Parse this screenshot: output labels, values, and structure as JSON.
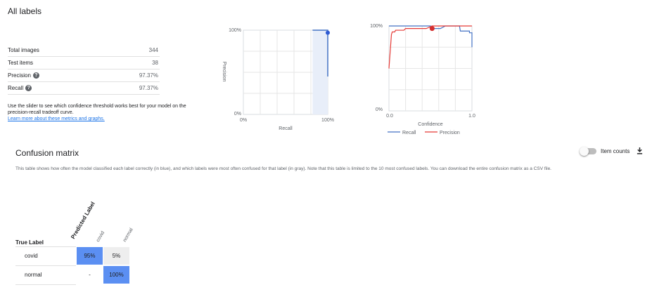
{
  "header": {
    "title": "All labels"
  },
  "metrics": [
    {
      "label": "Total images",
      "value": "344",
      "help": false
    },
    {
      "label": "Test items",
      "value": "38",
      "help": false
    },
    {
      "label": "Precision",
      "value": "97.37%",
      "help": true
    },
    {
      "label": "Recall",
      "value": "97.37%",
      "help": true
    }
  ],
  "info": {
    "text": "Use the slider to see which confidence threshold works best for your model on the precision-recall tradeoff curve.",
    "link": "Learn more about these metrics and graphs."
  },
  "pr_chart": {
    "y_top": "100%",
    "y_bottom": "0%",
    "x_left": "0%",
    "x_right": "100%",
    "xlabel": "Recall",
    "ylabel": "Precision"
  },
  "conf_chart": {
    "y_top": "100%",
    "y_bottom": "0%",
    "x_left": "0.0",
    "x_right": "1.0",
    "xlabel": "Confidence",
    "legend": {
      "recall": "Recall",
      "precision": "Precision"
    },
    "colors": {
      "recall": "#4472c4",
      "precision": "#e53935"
    }
  },
  "chart_data": [
    {
      "type": "line",
      "xlabel": "Recall",
      "ylabel": "Precision",
      "xlim": [
        0,
        1
      ],
      "ylim": [
        0,
        1
      ],
      "series": [
        {
          "values": [
            [
              0.82,
              1.0
            ],
            [
              1.0,
              1.0
            ],
            [
              1.0,
              0.95
            ],
            [
              1.0,
              0.45
            ]
          ]
        }
      ],
      "highlight_range": [
        0.82,
        1.0
      ],
      "marker": [
        1.0,
        0.97
      ]
    },
    {
      "type": "line",
      "xlabel": "Confidence",
      "xlim": [
        0,
        1
      ],
      "ylim": [
        0,
        1
      ],
      "series": [
        {
          "name": "Recall",
          "color": "#4472c4",
          "values": [
            [
              0.0,
              1.0
            ],
            [
              0.5,
              1.0
            ],
            [
              0.55,
              0.97
            ],
            [
              0.62,
              0.97
            ],
            [
              0.68,
              1.0
            ],
            [
              0.85,
              1.0
            ],
            [
              0.86,
              0.94
            ],
            [
              0.97,
              0.94
            ],
            [
              0.97,
              0.92
            ],
            [
              1.0,
              0.92
            ],
            [
              1.0,
              0.75
            ]
          ]
        },
        {
          "name": "Precision",
          "color": "#e53935",
          "values": [
            [
              0.0,
              0.5
            ],
            [
              0.03,
              0.9
            ],
            [
              0.04,
              0.93
            ],
            [
              0.07,
              0.93
            ],
            [
              0.08,
              0.95
            ],
            [
              0.18,
              0.95
            ],
            [
              0.2,
              0.97
            ],
            [
              0.45,
              0.97
            ],
            [
              0.52,
              1.0
            ],
            [
              1.0,
              1.0
            ]
          ]
        }
      ],
      "marker": [
        0.52,
        0.97
      ]
    }
  ],
  "confusion": {
    "title": "Confusion matrix",
    "toggle_label": "Item counts",
    "description": "This table shows how often the model classified each label correctly (in blue), and which labels were most often confused for that label (in gray). Note that this table is limited to the 10 most confused labels. You can download the entire confusion matrix as a CSV file.",
    "true_label": "True Label",
    "predicted_label": "Predicted Label",
    "columns": [
      "covid",
      "normal"
    ],
    "rows": [
      {
        "label": "covid",
        "cells": [
          "95%",
          "5%"
        ]
      },
      {
        "label": "normal",
        "cells": [
          "-",
          "100%"
        ]
      }
    ],
    "colors": {
      "correct": "#5b8ff2",
      "confused": "#eeeeee",
      "none": "#ffffff"
    }
  }
}
